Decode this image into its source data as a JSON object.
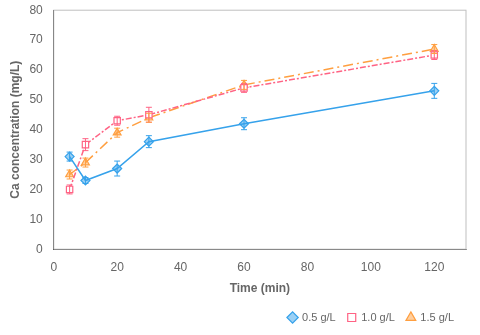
{
  "chart_data": {
    "type": "line",
    "x": [
      5,
      10,
      20,
      30,
      60,
      120
    ],
    "series": [
      {
        "name": "0.5 g/L",
        "values": [
          31,
          23,
          27,
          36,
          42,
          53
        ],
        "yerr": [
          1.5,
          1.0,
          2.5,
          2.0,
          2.0,
          2.5
        ],
        "marker": "diamond",
        "line_style": "solid"
      },
      {
        "name": "1.0 g/L",
        "values": [
          20,
          35,
          43,
          45,
          54,
          65
        ],
        "yerr": [
          1.5,
          2.0,
          1.5,
          2.5,
          1.5,
          1.5
        ],
        "marker": "open_square",
        "line_style": "densely_dashdot"
      },
      {
        "name": "1.5 g/L",
        "values": [
          25,
          29,
          39,
          44,
          55,
          67
        ],
        "yerr": [
          1.5,
          1.5,
          1.5,
          1.5,
          1.5,
          1.5
        ],
        "marker": "triangle",
        "line_style": "dashdot"
      }
    ],
    "x_label": "Time (min)",
    "y_label": "Ca concentration (mg/L)",
    "xlim": [
      0,
      130
    ],
    "ylim": [
      0,
      80
    ],
    "xticks": [
      0,
      20,
      40,
      60,
      80,
      100,
      120
    ],
    "yticks": [
      0,
      10,
      20,
      30,
      40,
      50,
      60,
      70,
      80
    ],
    "grid": false,
    "legend": "lower right"
  }
}
